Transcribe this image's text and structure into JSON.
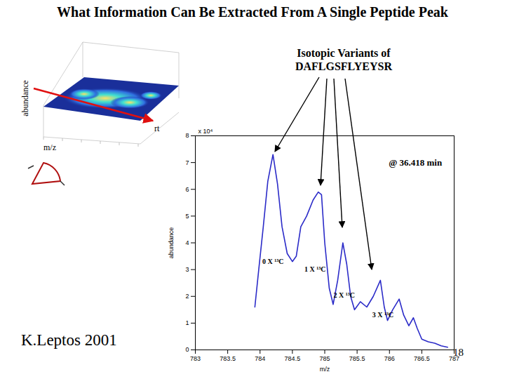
{
  "slide": {
    "title": "What Information Can Be Extracted From A Single Peptide Peak",
    "callout": [
      "Isotopic Variants of",
      "DAFLGSFLYEYSR"
    ],
    "author": "K.Leptos 2001",
    "page": "18",
    "inset": {
      "y_label": "abundance",
      "x_label": "m/z",
      "time_label": "rt"
    }
  },
  "chart_data": {
    "type": "line",
    "x_label": "m/z",
    "y_label": "abundance",
    "y_multiplier": "x 10⁴",
    "color": "#2b2bc8",
    "grid": false,
    "x": [
      783.92,
      783.98,
      784.05,
      784.12,
      784.2,
      784.27,
      784.34,
      784.42,
      784.5,
      784.56,
      784.63,
      784.72,
      784.82,
      784.9,
      784.95,
      785.0,
      785.07,
      785.13,
      785.2,
      785.28,
      785.34,
      785.4,
      785.46,
      785.55,
      785.65,
      785.75,
      785.86,
      785.92,
      785.97,
      786.05,
      786.15,
      786.22,
      786.3,
      786.37,
      786.43,
      786.5,
      786.6,
      786.7,
      786.8,
      786.9
    ],
    "values": [
      1.6,
      3.0,
      4.6,
      6.3,
      7.3,
      6.2,
      4.6,
      3.6,
      3.3,
      3.5,
      4.6,
      5.0,
      5.6,
      5.9,
      5.8,
      4.0,
      2.3,
      1.7,
      2.6,
      4.0,
      3.2,
      2.0,
      1.5,
      1.8,
      1.6,
      2.0,
      2.6,
      1.6,
      1.1,
      1.5,
      1.9,
      1.3,
      0.9,
      1.2,
      0.8,
      0.4,
      0.3,
      0.25,
      0.15,
      0.1
    ],
    "xlim": [
      783,
      787
    ],
    "xticks": [
      783,
      783.5,
      784,
      784.5,
      785,
      785.5,
      786,
      786.5,
      787
    ],
    "ylim": [
      0,
      8
    ],
    "yticks": [
      0,
      1,
      2,
      3,
      4,
      5,
      6,
      7,
      8
    ],
    "annotations": [
      {
        "text": "@ 36.418 min",
        "x": 786.4,
        "y": 7.0
      },
      {
        "text": "0 X ¹³C",
        "x": 784.2,
        "y": 3.3
      },
      {
        "text": "1 X ¹³C",
        "x": 784.85,
        "y": 3.0
      },
      {
        "text": "2 X ¹³C",
        "x": 785.3,
        "y": 2.05
      },
      {
        "text": "3 X ¹³C",
        "x": 785.9,
        "y": 1.3
      }
    ]
  }
}
